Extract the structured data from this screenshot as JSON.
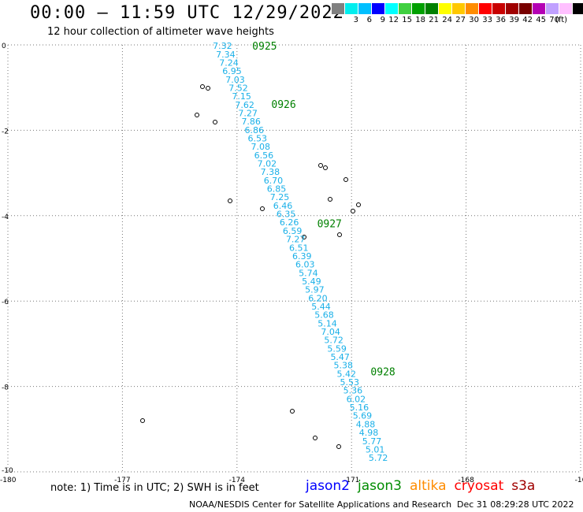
{
  "header": {
    "title": "00:00 – 11:59 UTC 12/29/2022",
    "subtitle": "12 hour collection of altimeter wave heights"
  },
  "legend": {
    "unit": "(ft)",
    "colors": [
      "#808080",
      "#00eeee",
      "#00bfff",
      "#0000ff",
      "#00ffff",
      "#40d040",
      "#00a000",
      "#008000",
      "#ffff00",
      "#ffc800",
      "#ff8c00",
      "#ff0000",
      "#c80000",
      "#a00000",
      "#780000",
      "#b400b4",
      "#c0a0ff",
      "#ffc0ff",
      "#000000"
    ],
    "labels": [
      "3",
      "6",
      "9",
      "12",
      "15",
      "18",
      "21",
      "24",
      "27",
      "30",
      "33",
      "36",
      "39",
      "42",
      "45",
      "70"
    ]
  },
  "axes": {
    "x_ticks": [
      "-180",
      "-177",
      "-174",
      "-171",
      "-168",
      "-16"
    ],
    "y_ticks": [
      "0",
      "-2",
      "-4",
      "-6",
      "-8",
      "-10"
    ]
  },
  "chart_data": {
    "type": "scatter",
    "xlim": [
      -180,
      -165
    ],
    "ylim": [
      -10,
      0
    ],
    "grid": true,
    "track_times": [
      {
        "label": "0925",
        "lon": -173.6,
        "lat": -0.02
      },
      {
        "label": "0926",
        "lon": -173.1,
        "lat": -1.38
      },
      {
        "label": "0927",
        "lon": -171.9,
        "lat": -4.18
      },
      {
        "label": "0928",
        "lon": -170.5,
        "lat": -7.65
      }
    ],
    "swh": {
      "values": [
        "7.32",
        "7.34",
        "7.24",
        "6.95",
        "7.03",
        "7.52",
        "7.15",
        "7.62",
        "7.27",
        "7.86",
        "6.86",
        "6.53",
        "7.08",
        "6.56",
        "7.02",
        "7.38",
        "6.70",
        "6.85",
        "7.25",
        "6.46",
        "6.35",
        "6.26",
        "6.59",
        "7.27",
        "6.51",
        "6.39",
        "6.03",
        "5.74",
        "5.49",
        "5.97",
        "6.20",
        "5.44",
        "5.68",
        "5.14",
        "7.04",
        "5.72",
        "5.59",
        "5.47",
        "5.38",
        "5.42",
        "5.53",
        "5.36",
        "6.02",
        "5.16",
        "5.69",
        "4.88",
        "4.98",
        "5.77",
        "5.01",
        "5.72"
      ],
      "lat_start": -0.02,
      "lat_end": -9.67,
      "lon_start": -174.38,
      "lon_end": -170.3
    }
  },
  "footer": {
    "note": "note:  1) Time is in UTC;  2) SWH is in feet",
    "satellites": [
      {
        "name": "jason2",
        "color": "#0000ff"
      },
      {
        "name": "jason3",
        "color": "#008c00"
      },
      {
        "name": "altika",
        "color": "#ff8c00"
      },
      {
        "name": "cryosat",
        "color": "#ff0000"
      },
      {
        "name": "s3a",
        "color": "#a00000"
      }
    ],
    "credit": "NOAA/NESDIS Center for Satellite Applications and Research",
    "timestamp": "Dec 31 08:29:28 UTC 2022"
  }
}
